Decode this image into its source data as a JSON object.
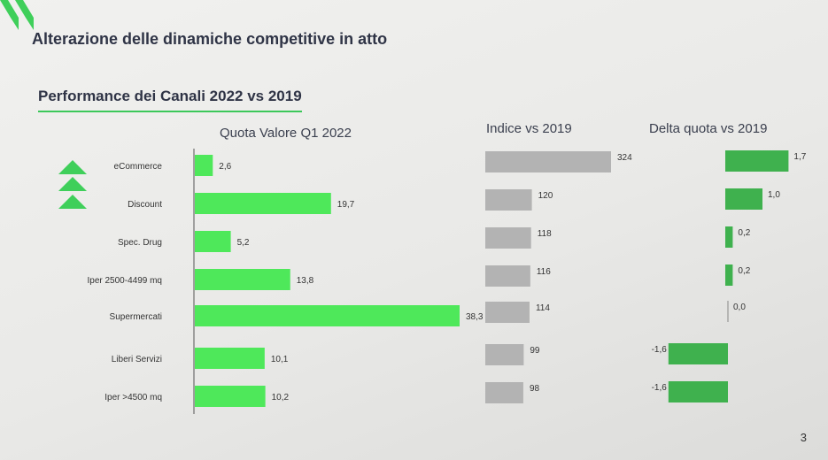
{
  "header": {
    "title": "Alterazione delle dinamiche competitive in atto",
    "subtitle": "Performance dei Canali 2022 vs 2019"
  },
  "page_number": "3",
  "colors": {
    "quota_bar": "#4ee85a",
    "indice_bar": "#b3b3b3",
    "delta_bar": "#3fb14e",
    "arrow": "#3fcf5a",
    "accent_line": "#3cc85a"
  },
  "chart_data": [
    {
      "type": "bar",
      "orientation": "horizontal",
      "title": "Quota Valore Q1 2022",
      "categories": [
        "eCommerce",
        "Discount",
        "Spec. Drug",
        "Iper 2500-4499 mq",
        "Supermercati",
        "Liberi Servizi",
        "Iper >4500 mq"
      ],
      "values": [
        2.6,
        19.7,
        5.2,
        13.8,
        38.3,
        10.1,
        10.2
      ],
      "value_labels": [
        "2,6",
        "19,7",
        "5,2",
        "13,8",
        "38,3",
        "10,1",
        "10,2"
      ],
      "xlim": [
        0,
        38.3
      ]
    },
    {
      "type": "bar",
      "orientation": "horizontal",
      "title": "Indice vs 2019",
      "categories": [
        "eCommerce",
        "Discount",
        "Spec. Drug",
        "Iper 2500-4499 mq",
        "Supermercati",
        "Liberi Servizi",
        "Iper >4500 mq"
      ],
      "values": [
        324,
        120,
        118,
        116,
        114,
        99,
        98
      ],
      "value_labels": [
        "324",
        "120",
        "118",
        "116",
        "114",
        "99",
        "98"
      ],
      "xlim": [
        0,
        324
      ]
    },
    {
      "type": "bar",
      "orientation": "horizontal",
      "title": "Delta quota vs 2019",
      "categories": [
        "eCommerce",
        "Discount",
        "Spec. Drug",
        "Iper 2500-4499 mq",
        "Supermercati",
        "Liberi Servizi",
        "Iper >4500 mq"
      ],
      "values": [
        1.7,
        1.0,
        0.2,
        0.2,
        0.0,
        -1.6,
        -1.6
      ],
      "value_labels": [
        "1,7",
        "1,0",
        "0,2",
        "0,2",
        "0,0",
        "-1,6",
        "-1,6"
      ],
      "xlim": [
        -1.6,
        1.7
      ]
    }
  ]
}
